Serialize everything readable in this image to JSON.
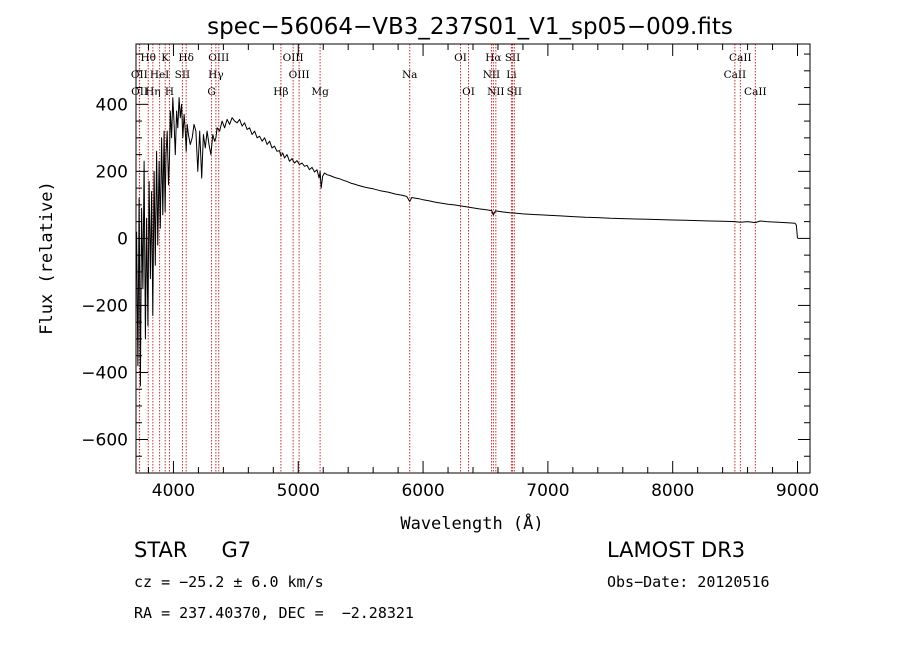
{
  "chart_data": {
    "type": "line",
    "title": "spec−56064−VB3_237S01_V1_sp05−009.fits",
    "xlabel": "Wavelength (Å)",
    "ylabel": "Flux (relative)",
    "xlim": [
      3700,
      9100
    ],
    "ylim": [
      -700,
      580
    ],
    "x_ticks": [
      4000,
      5000,
      6000,
      7000,
      8000,
      9000
    ],
    "x_tick_labels": [
      "4000",
      "5000",
      "6000",
      "7000",
      "8000",
      "9000"
    ],
    "x_minor_step": 200,
    "y_ticks": [
      -600,
      -400,
      -200,
      0,
      200,
      400
    ],
    "y_tick_labels": [
      "−600",
      "−400",
      "−200",
      "0",
      "200",
      "400"
    ],
    "y_minor_step": 50,
    "grid": false,
    "series": [
      {
        "name": "flux",
        "x": [
          3705,
          3715,
          3725,
          3735,
          3745,
          3755,
          3765,
          3775,
          3785,
          3795,
          3805,
          3815,
          3825,
          3835,
          3845,
          3855,
          3865,
          3875,
          3885,
          3895,
          3905,
          3915,
          3925,
          3933,
          3940,
          3950,
          3960,
          3968,
          3975,
          3985,
          3995,
          4005,
          4015,
          4025,
          4035,
          4045,
          4055,
          4065,
          4075,
          4085,
          4095,
          4102,
          4110,
          4120,
          4135,
          4150,
          4165,
          4180,
          4195,
          4210,
          4226,
          4240,
          4255,
          4270,
          4285,
          4300,
          4315,
          4330,
          4340,
          4350,
          4370,
          4390,
          4410,
          4430,
          4450,
          4470,
          4490,
          4510,
          4530,
          4550,
          4570,
          4590,
          4610,
          4630,
          4650,
          4670,
          4690,
          4710,
          4730,
          4750,
          4770,
          4790,
          4810,
          4830,
          4850,
          4861,
          4875,
          4890,
          4910,
          4930,
          4950,
          4970,
          4990,
          5010,
          5030,
          5050,
          5070,
          5090,
          5110,
          5130,
          5150,
          5167,
          5175,
          5184,
          5195,
          5210,
          5230,
          5250,
          5270,
          5290,
          5310,
          5330,
          5350,
          5370,
          5390,
          5420,
          5450,
          5480,
          5510,
          5540,
          5570,
          5600,
          5630,
          5660,
          5690,
          5720,
          5750,
          5780,
          5810,
          5840,
          5870,
          5893,
          5910,
          5940,
          5970,
          6000,
          6050,
          6100,
          6150,
          6200,
          6250,
          6300,
          6350,
          6400,
          6450,
          6500,
          6550,
          6563,
          6580,
          6620,
          6660,
          6700,
          6750,
          6800,
          6850,
          6900,
          6950,
          7000,
          7100,
          7200,
          7300,
          7400,
          7500,
          7600,
          7700,
          7800,
          7900,
          8000,
          8100,
          8200,
          8300,
          8400,
          8498,
          8542,
          8600,
          8662,
          8700,
          8750,
          8800,
          8850,
          8900,
          8950,
          8980,
          8990,
          8995,
          9000
        ],
        "y": [
          20,
          -380,
          120,
          -440,
          90,
          -150,
          230,
          -300,
          60,
          -260,
          170,
          -120,
          140,
          -230,
          200,
          -80,
          260,
          -20,
          230,
          30,
          300,
          70,
          320,
          80,
          250,
          320,
          160,
          240,
          380,
          300,
          420,
          340,
          250,
          380,
          330,
          420,
          360,
          400,
          300,
          370,
          320,
          260,
          340,
          310,
          280,
          300,
          340,
          320,
          200,
          320,
          180,
          310,
          270,
          320,
          280,
          250,
          310,
          290,
          300,
          330,
          320,
          350,
          330,
          355,
          340,
          360,
          350,
          345,
          355,
          335,
          345,
          325,
          330,
          310,
          320,
          300,
          305,
          290,
          300,
          280,
          290,
          270,
          275,
          260,
          262,
          245,
          255,
          240,
          250,
          230,
          238,
          225,
          232,
          220,
          225,
          215,
          218,
          205,
          212,
          198,
          205,
          180,
          200,
          150,
          185,
          195,
          190,
          188,
          185,
          182,
          180,
          178,
          175,
          172,
          170,
          165,
          162,
          158,
          155,
          152,
          150,
          148,
          145,
          142,
          140,
          138,
          135,
          132,
          130,
          128,
          125,
          110,
          122,
          120,
          118,
          115,
          112,
          108,
          105,
          102,
          100,
          97,
          94,
          91,
          88,
          86,
          83,
          70,
          82,
          80,
          78,
          76,
          75,
          73,
          72,
          71,
          70,
          69,
          67,
          65,
          63,
          62,
          60,
          59,
          58,
          57,
          56,
          55,
          54,
          53,
          52,
          51,
          50,
          48,
          50,
          47,
          52,
          50,
          49,
          48,
          47,
          46,
          45,
          40,
          20,
          0
        ]
      }
    ],
    "line_markers": [
      {
        "label": "Hθ",
        "wavelength": 3798,
        "row": 0
      },
      {
        "label": "K",
        "wavelength": 3934,
        "row": 0
      },
      {
        "label": "Hδ",
        "wavelength": 4102,
        "row": 0
      },
      {
        "label": "OIII",
        "wavelength": 4363,
        "row": 0
      },
      {
        "label": "OIII",
        "wavelength": 4959,
        "row": 0
      },
      {
        "label": "OI",
        "wavelength": 6300,
        "row": 0
      },
      {
        "label": "Hα",
        "wavelength": 6563,
        "row": 0
      },
      {
        "label": "SII",
        "wavelength": 6717,
        "row": 0
      },
      {
        "label": "CaII",
        "wavelength": 8542,
        "row": 0
      },
      {
        "label": "OII",
        "wavelength": 3727,
        "row": 1
      },
      {
        "label": "HeI",
        "wavelength": 3889,
        "row": 1
      },
      {
        "label": "SII",
        "wavelength": 4072,
        "row": 1
      },
      {
        "label": "Hγ",
        "wavelength": 4340,
        "row": 1
      },
      {
        "label": "OIII",
        "wavelength": 5007,
        "row": 1
      },
      {
        "label": "Na",
        "wavelength": 5893,
        "row": 1
      },
      {
        "label": "NII",
        "wavelength": 6548,
        "row": 1
      },
      {
        "label": "Li",
        "wavelength": 6708,
        "row": 1
      },
      {
        "label": "CaII",
        "wavelength": 8498,
        "row": 1
      },
      {
        "label": "OII",
        "wavelength": 3729,
        "row": 2
      },
      {
        "label": "Hη",
        "wavelength": 3835,
        "row": 2
      },
      {
        "label": "H",
        "wavelength": 3968,
        "row": 2
      },
      {
        "label": "G",
        "wavelength": 4305,
        "row": 2
      },
      {
        "label": "Hβ",
        "wavelength": 4861,
        "row": 2
      },
      {
        "label": "Mg",
        "wavelength": 5175,
        "row": 2
      },
      {
        "label": "OI",
        "wavelength": 6364,
        "row": 2
      },
      {
        "label": "NII",
        "wavelength": 6583,
        "row": 2
      },
      {
        "label": "SII",
        "wavelength": 6731,
        "row": 2
      },
      {
        "label": "CaII",
        "wavelength": 8662,
        "row": 2
      }
    ],
    "marker_color": "#c8322f",
    "axis_color": "#000000",
    "line_color": "#000000"
  },
  "info": {
    "object_class": "STAR",
    "object_subclass": "G7",
    "cz": "cz = −25.2 ± 6.0 km/s",
    "coords": "RA = 237.40370, DEC =  −2.28321",
    "survey": "LAMOST DR3",
    "obs_date": "Obs−Date: 20120516"
  }
}
